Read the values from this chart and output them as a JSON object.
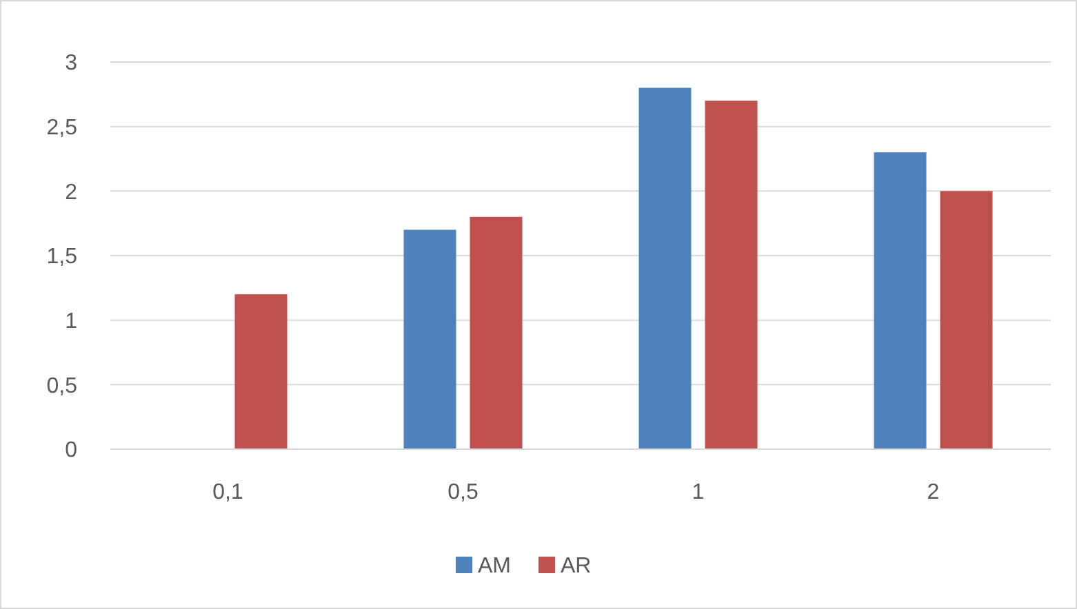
{
  "chart_data": {
    "type": "bar",
    "categories": [
      "0,1",
      "0,5",
      "1",
      "2"
    ],
    "series": [
      {
        "name": "AM",
        "color": "#4f81bd",
        "values": [
          null,
          1.7,
          2.8,
          2.3
        ]
      },
      {
        "name": "AR",
        "color": "#c0504d",
        "values": [
          1.2,
          1.8,
          2.7,
          2.0
        ]
      }
    ],
    "ylim": [
      0,
      3
    ],
    "yticks": [
      {
        "value": 0,
        "label": "0"
      },
      {
        "value": 0.5,
        "label": "0,5"
      },
      {
        "value": 1,
        "label": "1"
      },
      {
        "value": 1.5,
        "label": "1,5"
      },
      {
        "value": 2,
        "label": "2"
      },
      {
        "value": 2.5,
        "label": "2,5"
      },
      {
        "value": 3,
        "label": "3"
      }
    ],
    "grid": "y",
    "legend": "bottom"
  }
}
